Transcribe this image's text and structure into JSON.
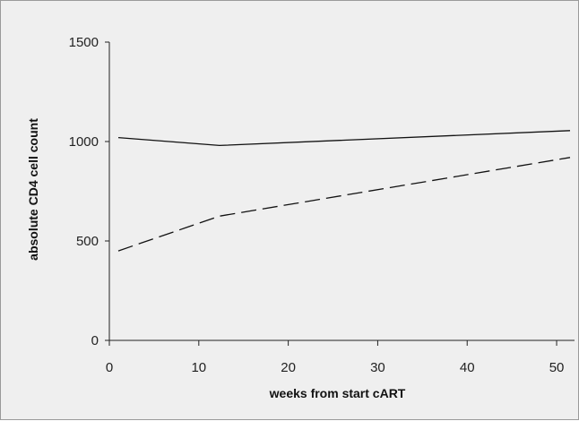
{
  "chart_data": {
    "type": "line",
    "title": "",
    "xlabel": "weeks from start cART",
    "ylabel": "absolute CD4 cell count",
    "xlim": [
      0,
      52
    ],
    "ylim": [
      0,
      1500
    ],
    "x_ticks": [
      0,
      10,
      20,
      30,
      40,
      50
    ],
    "y_ticks": [
      0,
      500,
      1000,
      1500
    ],
    "x_tick_labels": [
      "0",
      "10",
      "20",
      "30",
      "40",
      "50"
    ],
    "y_tick_labels": [
      "0",
      "500",
      "1000",
      "1500"
    ],
    "grid": false,
    "legend": "none",
    "series": [
      {
        "style": "solid",
        "color": "#111111",
        "x": [
          1,
          12.3,
          51.5
        ],
        "y": [
          1020,
          980,
          1055
        ]
      },
      {
        "style": "dashed",
        "color": "#111111",
        "x": [
          1,
          12.3,
          51.5
        ],
        "y": [
          450,
          625,
          920
        ]
      }
    ]
  }
}
